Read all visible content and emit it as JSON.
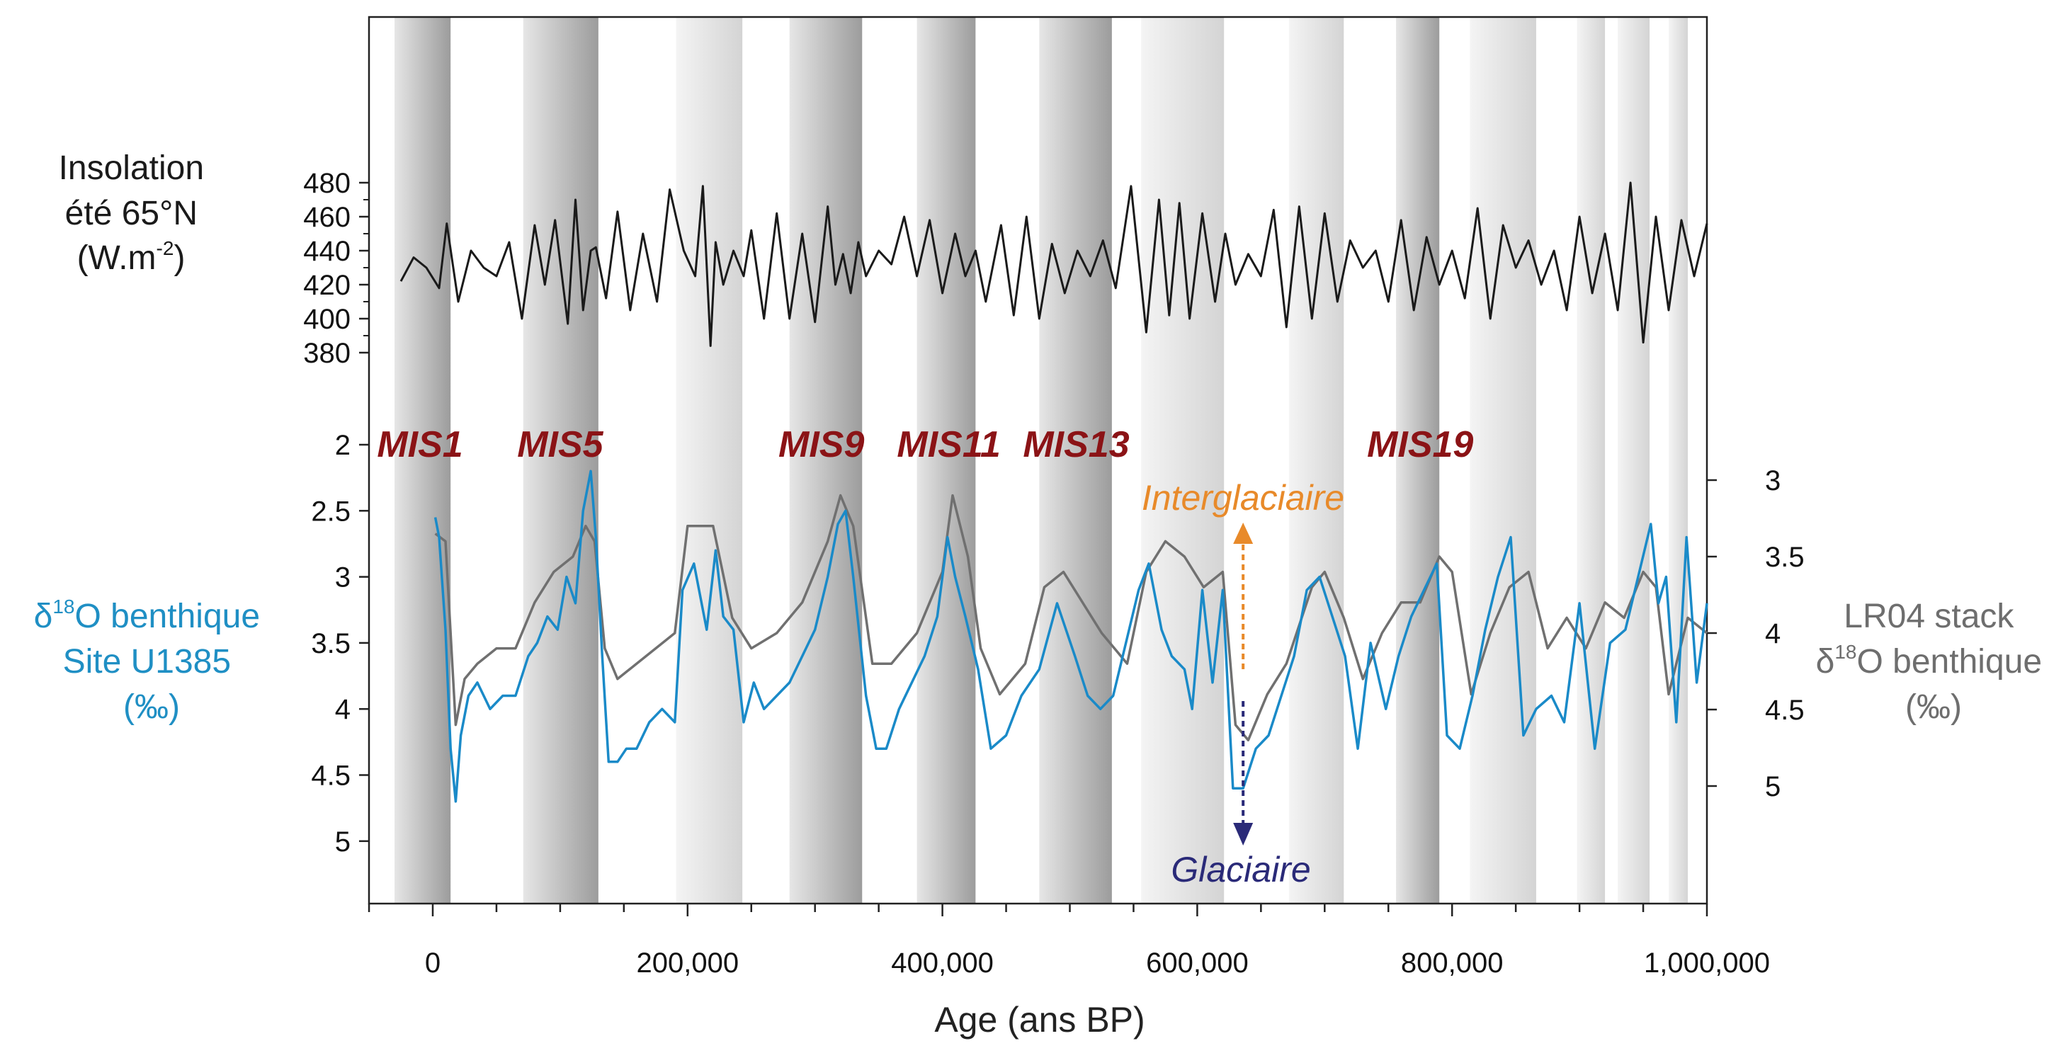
{
  "chart_data": {
    "type": "line",
    "x_axis": {
      "label": "Age (ans BP)",
      "range": [
        -125000,
        1000000
      ],
      "tick_labels": [
        "0",
        "200,000",
        "400,000",
        "600,000",
        "800,000",
        "1,000,000"
      ],
      "tick_values": [
        0,
        200000,
        400000,
        600000,
        800000,
        1000000
      ]
    },
    "panels": [
      {
        "id": "insolation",
        "ylabel_lines": [
          "Insolation",
          "été 65°N",
          "(W.m",
          "-2",
          ")"
        ],
        "ylim": [
          380,
          480
        ],
        "ticks": [
          "380",
          "400",
          "420",
          "440",
          "460",
          "480"
        ],
        "series": {
          "color": "#1a1a1a",
          "x": [
            -25000,
            -15000,
            -5000,
            5000,
            11000,
            20000,
            30000,
            40000,
            50000,
            60000,
            70000,
            80000,
            88000,
            96000,
            106000,
            112000,
            118000,
            124000,
            128000,
            136000,
            145000,
            155000,
            165000,
            176000,
            186000,
            197000,
            206000,
            212000,
            218000,
            222000,
            228000,
            236000,
            244000,
            250000,
            260000,
            270000,
            280000,
            290000,
            300000,
            310000,
            316000,
            322000,
            328000,
            334000,
            340000,
            350000,
            360000,
            370000,
            380000,
            390000,
            400000,
            410000,
            418000,
            426000,
            434000,
            446000,
            456000,
            466000,
            476000,
            486000,
            496000,
            506000,
            516000,
            526000,
            536000,
            548000,
            560000,
            570000,
            578000,
            586000,
            594000,
            604000,
            614000,
            622000,
            630000,
            640000,
            650000,
            660000,
            670000,
            680000,
            690000,
            700000,
            710000,
            720000,
            730000,
            740000,
            750000,
            760000,
            770000,
            780000,
            790000,
            800000,
            810000,
            820000,
            830000,
            840000,
            850000,
            860000,
            870000,
            880000,
            890000,
            900000,
            910000,
            920000,
            930000,
            940000,
            950000,
            960000,
            970000,
            980000,
            990000,
            1000000
          ],
          "y": [
            422,
            436,
            430,
            418,
            456,
            410,
            440,
            430,
            425,
            445,
            400,
            455,
            420,
            458,
            397,
            470,
            405,
            440,
            442,
            412,
            463,
            405,
            450,
            410,
            476,
            440,
            425,
            478,
            384,
            445,
            420,
            440,
            425,
            452,
            400,
            462,
            400,
            450,
            398,
            466,
            420,
            438,
            415,
            445,
            425,
            440,
            432,
            460,
            425,
            458,
            415,
            450,
            425,
            440,
            410,
            455,
            402,
            460,
            400,
            444,
            415,
            440,
            425,
            446,
            418,
            478,
            392,
            470,
            402,
            468,
            400,
            462,
            410,
            450,
            420,
            438,
            425,
            464,
            395,
            466,
            400,
            462,
            410,
            446,
            430,
            440,
            410,
            458,
            405,
            448,
            420,
            440,
            412,
            465,
            400,
            455,
            430,
            446,
            420,
            440,
            405,
            460,
            415,
            450,
            405,
            480,
            386,
            460,
            405,
            458,
            425,
            456
          ]
        }
      },
      {
        "id": "d18o",
        "ylabel_lines": [
          "δ",
          "18",
          "O benthique",
          "Site U1385",
          "(‰)"
        ],
        "ylim": [
          2,
          5
        ],
        "ticks": [
          "2",
          "2.5",
          "3",
          "3.5",
          "4",
          "4.5",
          "5"
        ],
        "series": [
          {
            "name": "Site U1385",
            "color": "#1a8ac8",
            "x": [
              2000,
              5000,
              10000,
              14000,
              18000,
              22000,
              28000,
              35000,
              45000,
              55000,
              65000,
              75000,
              82000,
              90000,
              98000,
              105000,
              112000,
              118000,
              124000,
              128000,
              133000,
              138000,
              145000,
              152000,
              160000,
              170000,
              180000,
              190000,
              196000,
              205000,
              215000,
              222000,
              228000,
              236000,
              244000,
              252000,
              260000,
              270000,
              280000,
              290000,
              300000,
              310000,
              318000,
              324000,
              330000,
              340000,
              348000,
              356000,
              366000,
              376000,
              386000,
              396000,
              404000,
              410000,
              418000,
              428000,
              438000,
              450000,
              462000,
              476000,
              490000,
              504000,
              514000,
              524000,
              534000,
              544000,
              554000,
              562000,
              572000,
              580000,
              590000,
              596000,
              604000,
              612000,
              620000,
              628000,
              636000,
              646000,
              656000,
              666000,
              676000,
              686000,
              696000,
              706000,
              716000,
              726000,
              736000,
              748000,
              758000,
              768000,
              778000,
              788000,
              796000,
              806000,
              816000,
              826000,
              836000,
              846000,
              856000,
              866000,
              878000,
              888000,
              900000,
              912000,
              924000,
              936000,
              946000,
              956000,
              962000,
              968000,
              976000,
              984000,
              992000,
              1000000
            ],
            "y": [
              2.55,
              2.7,
              3.4,
              4.3,
              4.7,
              4.2,
              3.9,
              3.8,
              4.0,
              3.9,
              3.9,
              3.6,
              3.5,
              3.3,
              3.4,
              3.0,
              3.2,
              2.5,
              2.2,
              2.7,
              3.6,
              4.4,
              4.4,
              4.3,
              4.3,
              4.1,
              4.0,
              4.1,
              3.1,
              2.9,
              3.4,
              2.8,
              3.3,
              3.4,
              4.1,
              3.8,
              4.0,
              3.9,
              3.8,
              3.6,
              3.4,
              3.0,
              2.6,
              2.5,
              3.0,
              3.9,
              4.3,
              4.3,
              4.0,
              3.8,
              3.6,
              3.3,
              2.7,
              3.0,
              3.3,
              3.7,
              4.3,
              4.2,
              3.9,
              3.7,
              3.2,
              3.6,
              3.9,
              4.0,
              3.9,
              3.5,
              3.1,
              2.9,
              3.4,
              3.6,
              3.7,
              4.0,
              3.1,
              3.8,
              3.1,
              4.6,
              4.6,
              4.3,
              4.2,
              3.9,
              3.6,
              3.1,
              3.0,
              3.3,
              3.6,
              4.3,
              3.5,
              4.0,
              3.6,
              3.3,
              3.1,
              2.9,
              4.2,
              4.3,
              3.9,
              3.4,
              3.0,
              2.7,
              4.2,
              4.0,
              3.9,
              4.1,
              3.2,
              4.3,
              3.5,
              3.4,
              3.0,
              2.6,
              3.2,
              3.0,
              4.1,
              2.7,
              3.8,
              3.2
            ]
          }
        ]
      },
      {
        "id": "lr04",
        "ylabel_lines": [
          "LR04 stack",
          "δ",
          "18",
          "O benthique",
          "(‰)"
        ],
        "ylim": [
          2.6,
          5.6
        ],
        "ticks": [
          "3",
          "3.5",
          "4",
          "4.5",
          "5"
        ],
        "series": [
          {
            "name": "LR04 stack",
            "color": "#707070",
            "x": [
              2000,
              10000,
              18000,
              25000,
              35000,
              50000,
              65000,
              80000,
              95000,
              110000,
              120000,
              127000,
              135000,
              145000,
              160000,
              175000,
              190000,
              200000,
              210000,
              220000,
              235000,
              250000,
              270000,
              290000,
              310000,
              320000,
              330000,
              345000,
              360000,
              380000,
              400000,
              408000,
              420000,
              430000,
              445000,
              465000,
              480000,
              495000,
              510000,
              525000,
              545000,
              560000,
              575000,
              590000,
              605000,
              620000,
              630000,
              640000,
              655000,
              670000,
              690000,
              700000,
              715000,
              730000,
              745000,
              760000,
              775000,
              790000,
              800000,
              815000,
              830000,
              845000,
              860000,
              875000,
              890000,
              905000,
              920000,
              935000,
              950000,
              960000,
              970000,
              985000,
              1000000
            ],
            "y": [
              3.35,
              3.4,
              4.6,
              4.3,
              4.2,
              4.1,
              4.1,
              3.8,
              3.6,
              3.5,
              3.3,
              3.4,
              4.1,
              4.3,
              4.2,
              4.1,
              4.0,
              3.3,
              3.3,
              3.3,
              3.9,
              4.1,
              4.0,
              3.8,
              3.4,
              3.1,
              3.3,
              4.2,
              4.2,
              4.0,
              3.6,
              3.1,
              3.5,
              4.1,
              4.4,
              4.2,
              3.7,
              3.6,
              3.8,
              4.0,
              4.2,
              3.6,
              3.4,
              3.5,
              3.7,
              3.6,
              4.6,
              4.7,
              4.4,
              4.2,
              3.7,
              3.6,
              3.9,
              4.3,
              4.0,
              3.8,
              3.8,
              3.5,
              3.6,
              4.4,
              4.0,
              3.7,
              3.6,
              4.1,
              3.9,
              4.1,
              3.8,
              3.9,
              3.6,
              3.7,
              4.4,
              3.9,
              4.0
            ]
          }
        ]
      }
    ],
    "bands": [
      {
        "start": -30000,
        "end": 14000,
        "shade": "dark"
      },
      {
        "start": 71000,
        "end": 130000,
        "shade": "dark"
      },
      {
        "start": 191000,
        "end": 243000,
        "shade": "light"
      },
      {
        "start": 280000,
        "end": 337000,
        "shade": "dark"
      },
      {
        "start": 380000,
        "end": 426000,
        "shade": "dark"
      },
      {
        "start": 476000,
        "end": 533000,
        "shade": "dark"
      },
      {
        "start": 556000,
        "end": 621000,
        "shade": "light"
      },
      {
        "start": 672000,
        "end": 715000,
        "shade": "light"
      },
      {
        "start": 756000,
        "end": 790000,
        "shade": "dark"
      },
      {
        "start": 814000,
        "end": 866000,
        "shade": "light"
      },
      {
        "start": 898000,
        "end": 920000,
        "shade": "light"
      },
      {
        "start": 930000,
        "end": 955000,
        "shade": "light"
      },
      {
        "start": 970000,
        "end": 985000,
        "shade": "light"
      }
    ],
    "mis_labels": [
      {
        "text": "MIS1",
        "x": -10000
      },
      {
        "text": "MIS5",
        "x": 100000
      },
      {
        "text": "MIS9",
        "x": 305000
      },
      {
        "text": "MIS11",
        "x": 405000
      },
      {
        "text": "MIS13",
        "x": 505000
      },
      {
        "text": "MIS19",
        "x": 775000
      }
    ],
    "annotations": {
      "interglacial": {
        "text": "Interglaciaire",
        "color": "#e88a2a"
      },
      "glacial": {
        "text": "Glaciaire",
        "color": "#2a2a78"
      },
      "arrow_x": 636000
    },
    "colors": {
      "insolation": "#1a1a1a",
      "u1385": "#1a8ac8",
      "lr04": "#707070",
      "mis_labels": "#8b1316"
    }
  }
}
